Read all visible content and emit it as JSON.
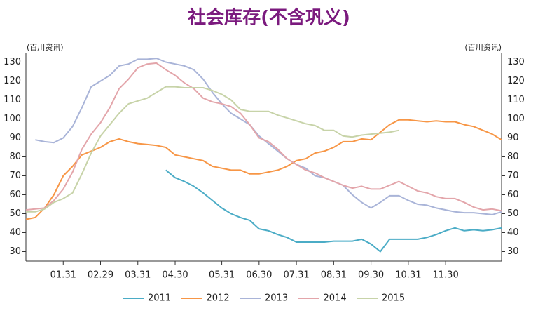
{
  "chart_data": {
    "type": "line",
    "title": "社会库存(不含巩义)",
    "unit": "(百川资讯)",
    "categories": [
      null,
      null,
      null,
      null,
      "01.31",
      null,
      null,
      null,
      "02.29",
      null,
      null,
      null,
      "03.31",
      null,
      null,
      null,
      "04.30",
      null,
      null,
      null,
      null,
      "05.31",
      null,
      null,
      null,
      "06.30",
      null,
      null,
      null,
      "07.31",
      null,
      null,
      null,
      "08.31",
      null,
      null,
      null,
      "09.30",
      null,
      null,
      null,
      "10.31",
      null,
      null,
      null,
      "11.30",
      null,
      null,
      null,
      null,
      null,
      null
    ],
    "ylim": [
      25,
      135
    ],
    "yticks": [
      30,
      40,
      50,
      60,
      70,
      80,
      90,
      100,
      110,
      120,
      130
    ],
    "series": [
      {
        "name": "2011",
        "color": "#4bacc6",
        "values": [
          null,
          null,
          null,
          null,
          null,
          null,
          null,
          null,
          null,
          null,
          null,
          null,
          null,
          null,
          null,
          73,
          69,
          67,
          64.5,
          61,
          57,
          53,
          50,
          48,
          46.5,
          42,
          41,
          39,
          37.5,
          35,
          35,
          35,
          35,
          35.5,
          35.5,
          35.5,
          36.5,
          34,
          30,
          36.5,
          36.5,
          36.5,
          36.5,
          37.5,
          39,
          41,
          42.5,
          41,
          41.5,
          41,
          41.5,
          42.5
        ]
      },
      {
        "name": "2012",
        "color": "#f79646",
        "values": [
          47,
          48,
          53,
          60,
          70,
          75,
          81,
          83,
          85,
          88,
          89.5,
          88,
          87,
          86.5,
          86,
          85,
          81,
          80,
          79,
          78,
          75,
          74,
          73,
          73,
          71,
          71,
          72,
          73,
          75,
          78,
          79,
          82,
          83,
          85,
          88,
          88,
          89.5,
          89,
          93,
          97,
          99.5,
          99.5,
          99,
          98.5,
          99,
          98.5,
          98.5,
          97,
          96,
          94,
          92,
          89
        ]
      },
      {
        "name": "2013",
        "color": "#a9b4d8",
        "values": [
          null,
          89,
          88,
          87.5,
          90,
          96,
          106,
          117,
          120,
          123,
          128,
          129,
          131.5,
          131.5,
          132,
          130,
          129,
          128,
          126,
          121,
          114,
          108,
          103,
          100,
          97,
          91,
          87,
          83,
          79,
          76,
          74,
          70,
          69,
          67,
          65,
          60,
          56,
          53,
          56,
          59.5,
          59.5,
          57,
          55,
          54.5,
          53,
          52,
          51,
          50.5,
          50.5,
          50,
          49.5,
          51
        ]
      },
      {
        "name": "2014",
        "color": "#e3a5aa",
        "values": [
          52,
          52.5,
          53,
          57,
          63,
          72,
          84,
          92,
          98,
          106,
          116,
          121,
          127,
          129,
          129.5,
          126,
          123,
          119,
          116,
          111,
          109,
          108,
          106.5,
          103,
          97,
          90,
          88,
          84,
          79,
          76,
          73,
          71.5,
          69,
          67,
          65,
          63.5,
          64.5,
          63,
          63,
          65,
          67,
          64.5,
          62,
          61,
          59,
          58,
          58,
          56,
          53.5,
          52,
          52.5,
          51.5
        ]
      },
      {
        "name": "2015",
        "color": "#c7d3a8",
        "values": [
          51,
          51,
          52.5,
          56,
          58,
          61,
          71,
          82,
          91,
          97,
          103,
          108,
          109.5,
          111,
          114,
          117,
          117,
          116.5,
          116.5,
          116.5,
          115,
          113,
          110,
          105,
          104,
          104,
          104,
          102,
          100.5,
          99,
          97.5,
          96.5,
          94,
          94,
          91,
          90.5,
          91.5,
          92,
          92.5,
          93,
          94,
          null,
          null,
          null,
          null,
          null,
          null,
          null,
          null,
          null,
          null,
          null
        ]
      }
    ]
  }
}
